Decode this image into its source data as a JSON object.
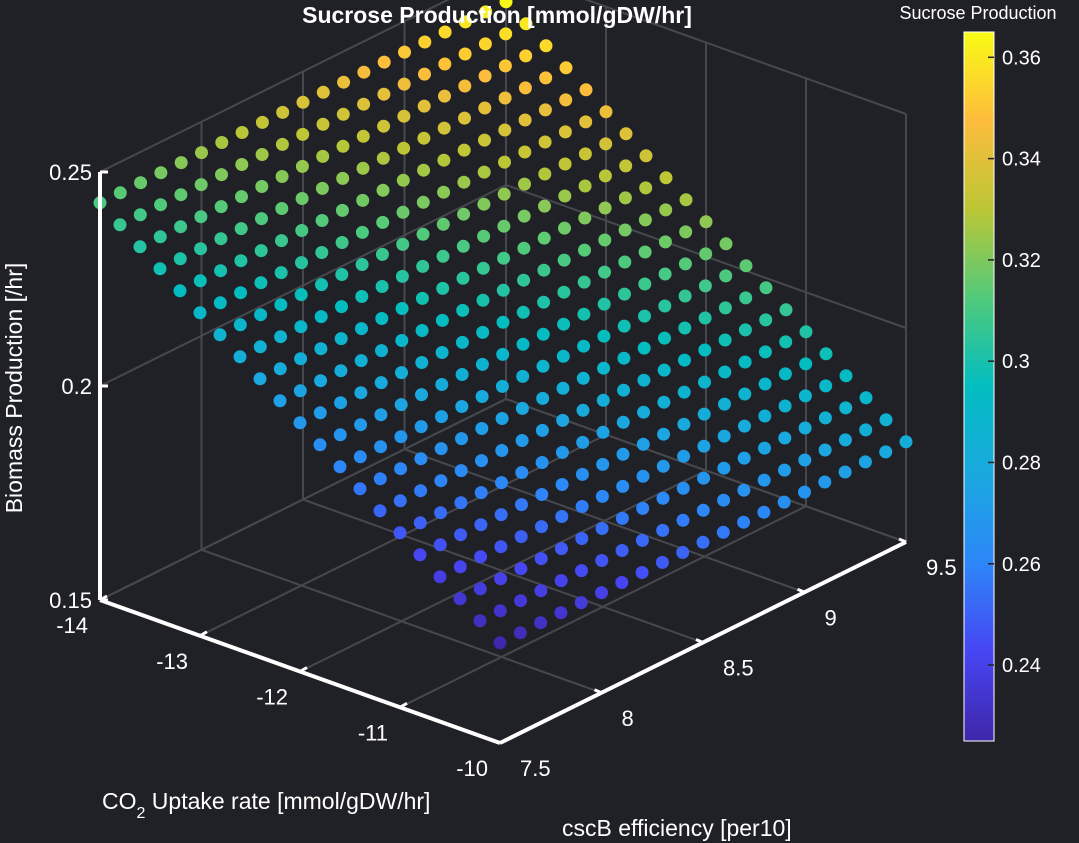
{
  "chart_data": {
    "type": "scatter",
    "title": "Sucrose Production [mmol/gDW/hr]",
    "xlabel": "CO2 Uptake rate [mmol/gDW/hr]",
    "xlabel_parts": {
      "pre": "CO",
      "sub": "2",
      "post": " Uptake rate [mmol/gDW/hr]"
    },
    "ylabel": "cscB efficiency [per10]",
    "zlabel": "Biomass Production [/hr]",
    "xlim": [
      -14,
      -10
    ],
    "ylim": [
      7.5,
      9.5
    ],
    "zlim": [
      0.15,
      0.25
    ],
    "x_ticks": [
      "-14",
      "-13",
      "-12",
      "-11",
      "-10"
    ],
    "y_ticks": [
      "7.5",
      "8",
      "8.5",
      "9",
      "9.5"
    ],
    "z_ticks": [
      "0.15",
      "0.2",
      "0.25"
    ],
    "grid": true,
    "colorbar": {
      "label": "Sucrose Production",
      "range": [
        0.225,
        0.365
      ],
      "ticks": [
        "0.24",
        "0.26",
        "0.28",
        "0.3",
        "0.32",
        "0.34",
        "0.36"
      ],
      "colormap": "parula"
    },
    "x_grid": [
      -14,
      -13.8,
      -13.6,
      -13.4,
      -13.2,
      -13,
      -12.8,
      -12.6,
      -12.4,
      -12.2,
      -12,
      -11.8,
      -11.6,
      -11.4,
      -11.2,
      -11,
      -10.8,
      -10.6,
      -10.4,
      -10.2,
      -10
    ],
    "y_grid": [
      7.5,
      7.6,
      7.7,
      7.8,
      7.9,
      8,
      8.1,
      8.2,
      8.3,
      8.4,
      8.5,
      8.6,
      8.7,
      8.8,
      8.9,
      9,
      9.1,
      9.2,
      9.3,
      9.4,
      9.5
    ],
    "z_model": {
      "at_x_min_y_min": 0.2428,
      "at_x_max_y_min": 0.1734,
      "at_x_min_y_max": 0.2428,
      "at_x_max_y_max": 0.1734
    },
    "c_model": {
      "at_x_min_y_min": 0.311,
      "at_x_max_y_min": 0.226,
      "at_x_min_y_max": 0.364,
      "at_x_max_y_max": 0.281
    }
  }
}
